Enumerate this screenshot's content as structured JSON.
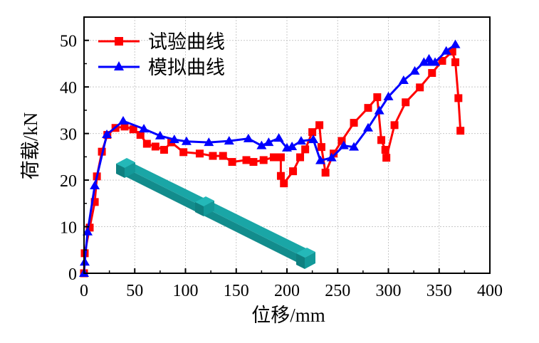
{
  "chart_data": {
    "type": "line",
    "title": "",
    "xlabel": "位移/mm",
    "ylabel": "荷载/kN",
    "xlim": [
      0,
      400
    ],
    "ylim": [
      0,
      55
    ],
    "xticks": [
      0,
      50,
      100,
      150,
      200,
      250,
      300,
      350,
      400
    ],
    "yticks": [
      0,
      10,
      20,
      30,
      40,
      50
    ],
    "grid": true,
    "legend_position": "top-left",
    "series": [
      {
        "name": "试验曲线",
        "color": "#ff0000",
        "marker": "square",
        "x": [
          0,
          0.7,
          5.6,
          10.6,
          12.7,
          17.6,
          23,
          31,
          40,
          48.6,
          55.6,
          62,
          70.4,
          78.9,
          86,
          98,
          114,
          127,
          137,
          146,
          160,
          167,
          177,
          187,
          194,
          194,
          197,
          206,
          213,
          218,
          225,
          232,
          234,
          238,
          246,
          254,
          266,
          280,
          289,
          293,
          297,
          298,
          306,
          317,
          331,
          343,
          353,
          363,
          366,
          369,
          371
        ],
        "y": [
          0,
          4.3,
          9.8,
          15.3,
          20.8,
          26.1,
          29.7,
          31.2,
          31.5,
          30.9,
          29.7,
          27.8,
          27.2,
          26.5,
          28.1,
          26,
          25.7,
          25.2,
          25.2,
          23.9,
          24.3,
          23.9,
          24.3,
          24.9,
          24.9,
          20.9,
          19.3,
          21.9,
          24.9,
          26.6,
          30.3,
          31.8,
          27.1,
          21.6,
          25.7,
          28.4,
          32.3,
          35.5,
          37.8,
          28.6,
          26.5,
          24.8,
          31.8,
          36.7,
          39.9,
          43,
          45.6,
          47.6,
          45.3,
          37.6,
          30.6
        ]
      },
      {
        "name": "模拟曲线",
        "color": "#0000ff",
        "marker": "triangle",
        "x": [
          0,
          0.7,
          3.5,
          10.6,
          22.5,
          38.6,
          59,
          75,
          89,
          101,
          123,
          143,
          162,
          175,
          182,
          192,
          200,
          205,
          214,
          226,
          233,
          244,
          256,
          266,
          280,
          291,
          300,
          315,
          326,
          335,
          340,
          342,
          346,
          357,
          366
        ],
        "y": [
          0,
          2.4,
          8.9,
          18.8,
          29.8,
          32.7,
          31,
          29.5,
          28.7,
          28.3,
          28.1,
          28.4,
          28.9,
          27.4,
          28.1,
          29,
          26.9,
          27.2,
          28.4,
          28.7,
          24.2,
          24.8,
          27.4,
          27.1,
          31.2,
          34.9,
          37.9,
          41.4,
          43.4,
          45.3,
          46,
          45.3,
          45.3,
          47.7,
          49.1
        ]
      }
    ]
  }
}
